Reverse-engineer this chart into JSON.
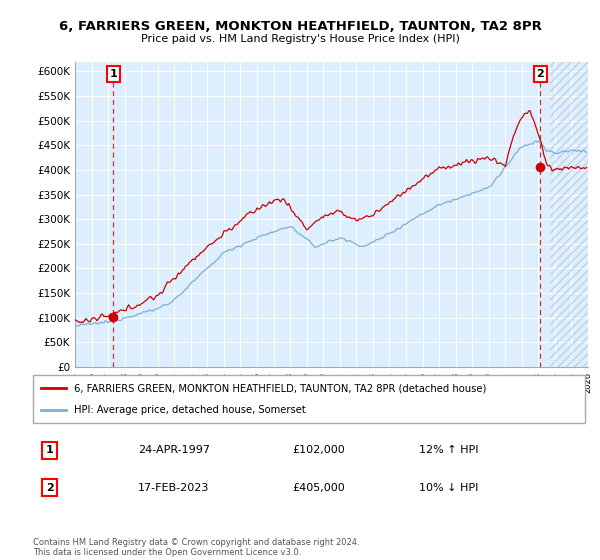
{
  "title_line1": "6, FARRIERS GREEN, MONKTON HEATHFIELD, TAUNTON, TA2 8PR",
  "title_line2": "Price paid vs. HM Land Registry's House Price Index (HPI)",
  "legend_label1": "6, FARRIERS GREEN, MONKTON HEATHFIELD, TAUNTON, TA2 8PR (detached house)",
  "legend_label2": "HPI: Average price, detached house, Somerset",
  "annotation1_date": "24-APR-1997",
  "annotation1_price": "£102,000",
  "annotation1_hpi": "12% ↑ HPI",
  "annotation2_date": "17-FEB-2023",
  "annotation2_price": "£405,000",
  "annotation2_hpi": "10% ↓ HPI",
  "copyright": "Contains HM Land Registry data © Crown copyright and database right 2024.\nThis data is licensed under the Open Government Licence v3.0.",
  "color_sold": "#cc0000",
  "color_hpi": "#7aafd4",
  "color_bg": "#ddeeff",
  "color_hatch": "#c0d0e8",
  "ylim_max": 620000,
  "yticks": [
    0,
    50000,
    100000,
    150000,
    200000,
    250000,
    300000,
    350000,
    400000,
    450000,
    500000,
    550000,
    600000
  ],
  "ytick_labels": [
    "£0",
    "£50K",
    "£100K",
    "£150K",
    "£200K",
    "£250K",
    "£300K",
    "£350K",
    "£400K",
    "£450K",
    "£500K",
    "£550K",
    "£600K"
  ],
  "sale1_x": 1997.31,
  "sale1_y": 102000,
  "sale2_x": 2023.12,
  "sale2_y": 405000,
  "xmin": 1995,
  "xmax": 2026
}
